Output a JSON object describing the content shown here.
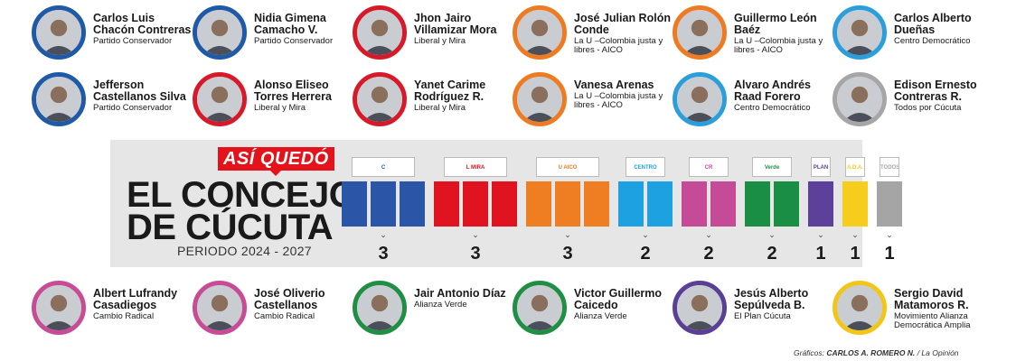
{
  "councillors_top": [
    {
      "name": "Carlos Luis Chacón Contreras",
      "party": "Partido Conservador",
      "color": "#1e5aa8"
    },
    {
      "name": "Nidia Gimena Camacho V.",
      "party": "Partido Conservador",
      "color": "#1e5aa8"
    },
    {
      "name": "Jhon Jairo Villamizar Mora",
      "party": "Liberal y Mira",
      "color": "#d7192a"
    },
    {
      "name": "José Julian Rolón Conde",
      "party": "La U –Colombia justa y libres - AICO",
      "color": "#ee7b22"
    },
    {
      "name": "Guillermo León Baéz",
      "party": "La U –Colombia justa y libres - AICO",
      "color": "#ee7b22"
    },
    {
      "name": "Carlos Alberto Dueñas",
      "party": "Centro Democrático",
      "color": "#2b9fdc"
    }
  ],
  "councillors_mid": [
    {
      "name": "Jefferson Castellanos Silva",
      "party": "Partido Conservador",
      "color": "#1e5aa8"
    },
    {
      "name": "Alonso Eliseo Torres Herrera",
      "party": "Liberal y Mira",
      "color": "#d7192a"
    },
    {
      "name": "Yanet Carime Rodríguez R.",
      "party": "Liberal y Mira",
      "color": "#d7192a"
    },
    {
      "name": "Vanesa Arenas",
      "party": "La U –Colombia justa y libres - AICO",
      "color": "#ee7b22"
    },
    {
      "name": "Alvaro Andrés Raad Forero",
      "party": "Centro Democrático",
      "color": "#2b9fdc"
    },
    {
      "name": "Edison Ernesto Contreras R.",
      "party": "Todos por Cúcuta",
      "color": "#a6a6a6"
    }
  ],
  "councillors_bottom": [
    {
      "name": "Albert Lufrandy Casadiegos",
      "party": "Cambio Radical",
      "color": "#c74b95"
    },
    {
      "name": "José Oliverio Castellanos",
      "party": "Cambio Radical",
      "color": "#c74b95"
    },
    {
      "name": "Jair Antonio Díaz",
      "party": "Alianza Verde",
      "color": "#1f8f43"
    },
    {
      "name": "Victor Guillermo Caicedo",
      "party": "Alianza Verde",
      "color": "#1f8f43"
    },
    {
      "name": "Jesús Alberto Sepúlveda B.",
      "party": "El Plan Cúcuta",
      "color": "#5a3f96"
    },
    {
      "name": "Sergio David Matamoros R.",
      "party": "Movimiento Alianza Democrática Amplia",
      "color": "#f2c618"
    }
  ],
  "header": {
    "badge": "ASÍ QUEDÓ",
    "title_line1": "EL CONCEJO",
    "title_line2": "DE CÚCUTA",
    "period": "PERIODO 2024 - 2027"
  },
  "chart_data": {
    "type": "bar",
    "title": "EL CONCEJO DE CÚCUTA",
    "subtitle": "PERIODO 2024 - 2027",
    "categories": [
      "Partido Conservador",
      "Liberal y Mira",
      "La U –Colombia justa y libres - AICO",
      "Centro Democrático",
      "Cambio Radical",
      "Alianza Verde",
      "El Plan Cúcuta",
      "A.D.A.",
      "Todos por Cúcuta"
    ],
    "values": [
      3,
      3,
      3,
      2,
      2,
      2,
      1,
      1,
      1
    ],
    "colors": [
      "#2b56a8",
      "#e01420",
      "#ef7d22",
      "#1ea1e0",
      "#c64b97",
      "#1a8e45",
      "#5d4099",
      "#f6cd1c",
      "#a5a5a5"
    ],
    "logo_labels": [
      "C",
      "L  MIRA",
      "U  AICO",
      "CENTRO DEMOCRÁTICO",
      "CR",
      "Verde",
      "PLAN",
      "A.D.A.",
      "TODOS X CÚCUTA"
    ]
  },
  "credit": {
    "prefix": "Gráficos:",
    "author": "CARLOS A. ROMERO N.",
    "source": "/ La Opinión"
  }
}
